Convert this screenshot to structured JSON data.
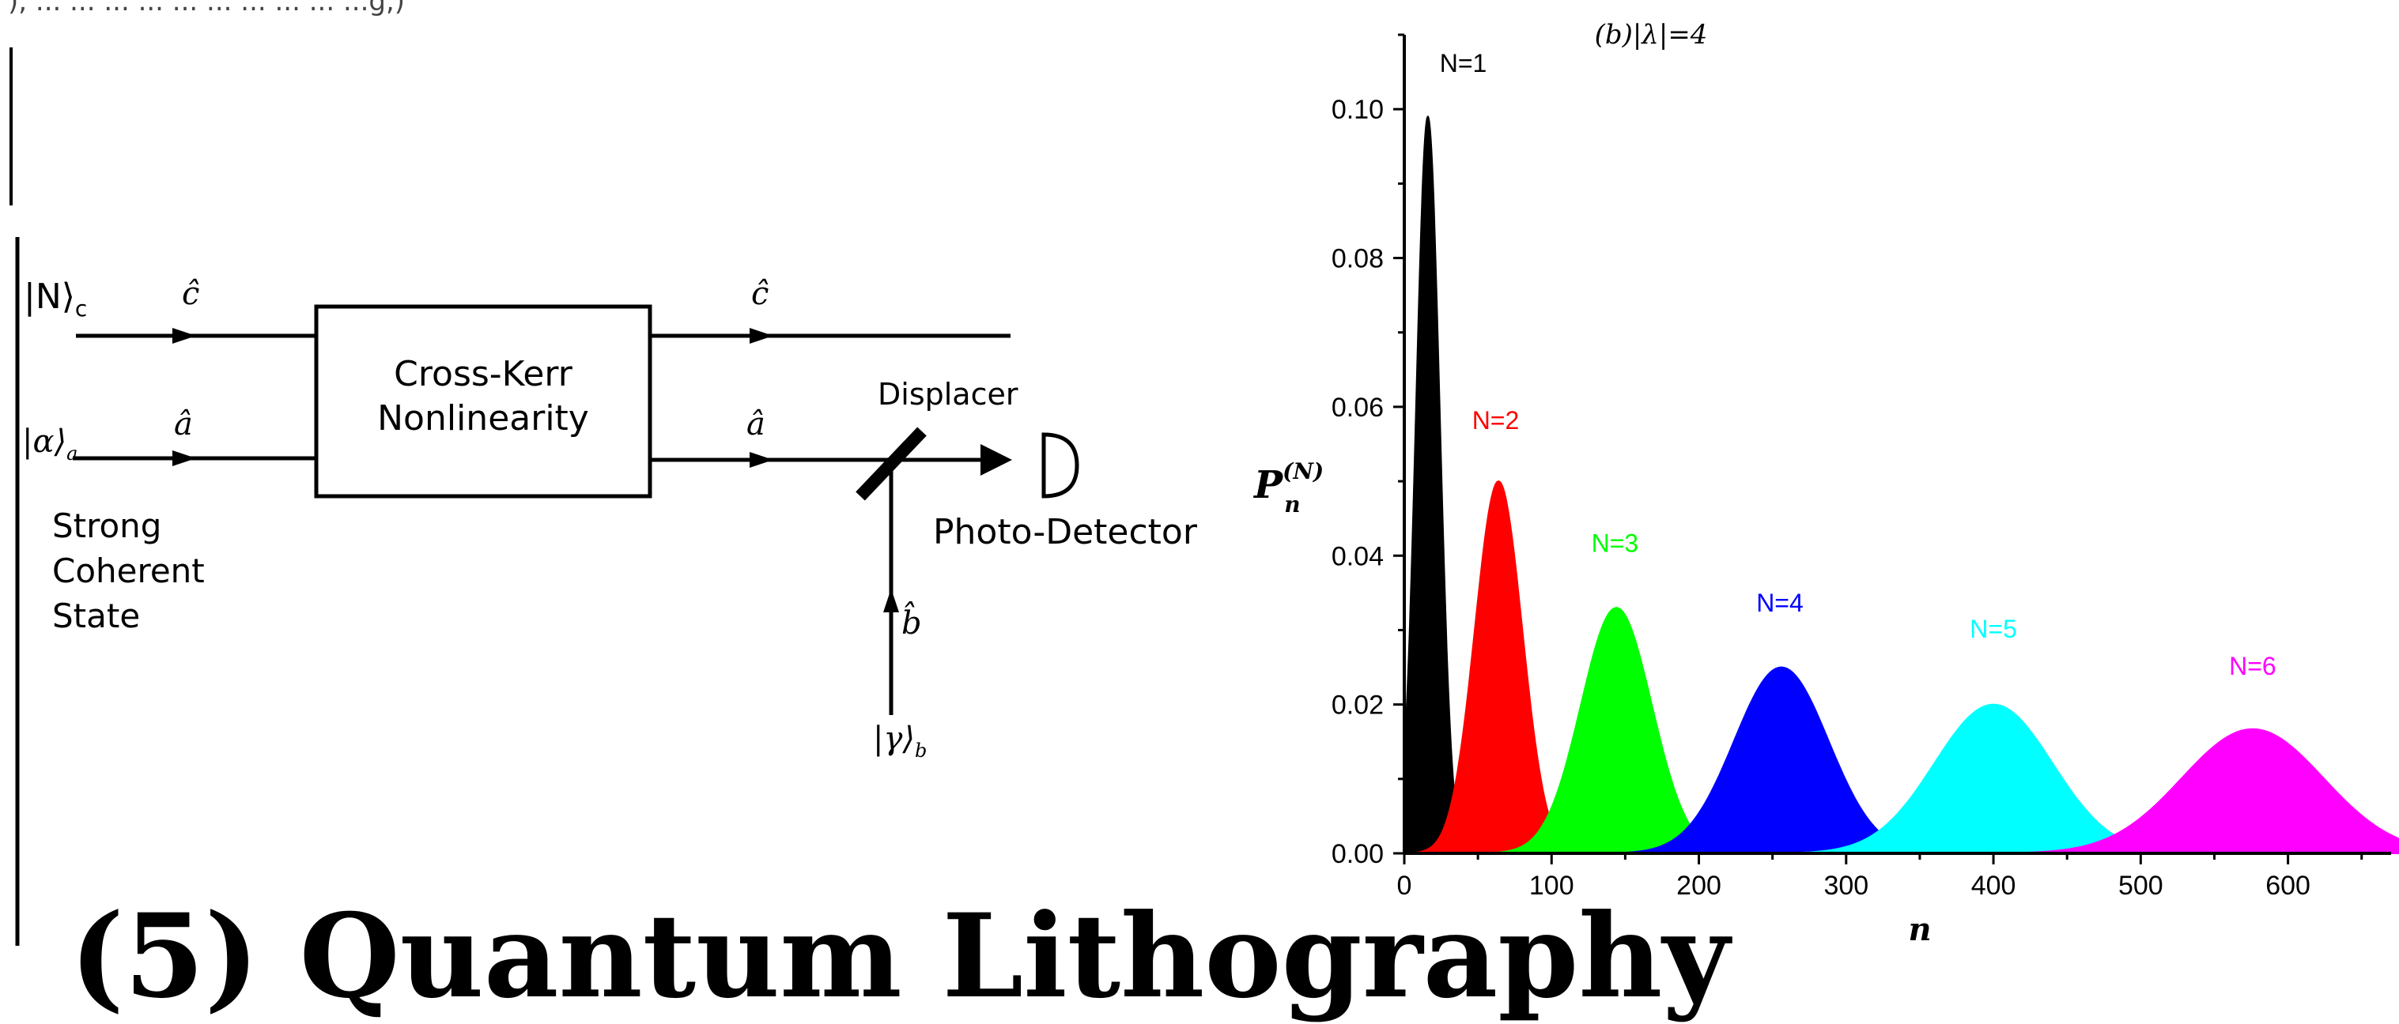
{
  "top_snippet": "), ... ... ... ... ... ... ... ... ... ...g,)",
  "diagram": {
    "input_c": "|N⟩",
    "input_c_sub": "c",
    "input_a": "|α⟩",
    "input_a_sub": "a",
    "input_b": "|γ⟩",
    "input_b_sub": "b",
    "mode_c": "ĉ",
    "mode_a": "â",
    "mode_b": "b̂",
    "box_line1": "Cross-Kerr",
    "box_line2": "Nonlinearity",
    "displacer": "Displacer",
    "detector": "Photo-Detector",
    "strong_line1": "Strong",
    "strong_line2": "Coherent",
    "strong_line3": "State"
  },
  "heading": "(5) Quantum Lithography",
  "chart_data": {
    "type": "area",
    "title": "(b)|λ|=4",
    "xlabel": "n",
    "ylabel": "P",
    "ylabel_sup": "(N)",
    "ylabel_sub": "n",
    "xlim": [
      0,
      670
    ],
    "ylim": [
      0,
      0.11
    ],
    "x_ticks": [
      0,
      100,
      200,
      300,
      400,
      500,
      600
    ],
    "y_ticks": [
      0.0,
      0.02,
      0.04,
      0.06,
      0.08,
      0.1
    ],
    "y_tick_labels": [
      "0.00",
      "0.02",
      "0.04",
      "0.06",
      "0.08",
      "0.10"
    ],
    "grid": false,
    "series": [
      {
        "name": "N=1",
        "color": "#000000",
        "peak_n": 16,
        "peak_p": 0.099,
        "width": 8
      },
      {
        "name": "N=2",
        "color": "#ff0000",
        "peak_n": 64,
        "peak_p": 0.05,
        "width": 16
      },
      {
        "name": "N=3",
        "color": "#00ff00",
        "peak_n": 144,
        "peak_p": 0.033,
        "width": 24
      },
      {
        "name": "N=4",
        "color": "#0000ff",
        "peak_n": 256,
        "peak_p": 0.025,
        "width": 32
      },
      {
        "name": "N=5",
        "color": "#00ffff",
        "peak_n": 400,
        "peak_p": 0.02,
        "width": 40
      },
      {
        "name": "N=6",
        "color": "#ff00ff",
        "peak_n": 576,
        "peak_p": 0.0167,
        "width": 48
      }
    ],
    "label_positions": [
      {
        "n": 40,
        "p": 0.105
      },
      {
        "n": 62,
        "p": 0.057
      },
      {
        "n": 143,
        "p": 0.0405
      },
      {
        "n": 255,
        "p": 0.0325
      },
      {
        "n": 400,
        "p": 0.029
      },
      {
        "n": 576,
        "p": 0.024
      }
    ]
  }
}
